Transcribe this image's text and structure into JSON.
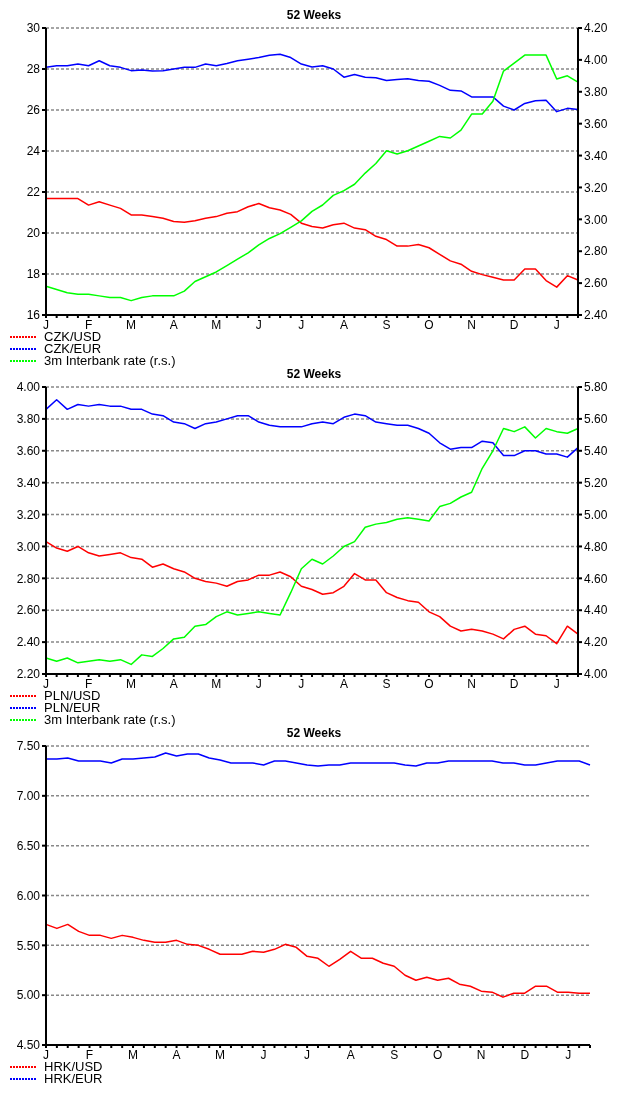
{
  "chart_data": [
    {
      "type": "line",
      "title": "52 Weeks",
      "categories": [
        "J",
        null,
        null,
        null,
        "F",
        null,
        null,
        null,
        "M",
        null,
        null,
        null,
        "A",
        null,
        null,
        null,
        "M",
        null,
        null,
        null,
        "J",
        null,
        null,
        null,
        "J",
        null,
        null,
        null,
        "A",
        null,
        null,
        null,
        "S",
        null,
        null,
        null,
        "O",
        null,
        null,
        null,
        "N",
        null,
        null,
        null,
        "D",
        null,
        null,
        null,
        "J",
        null,
        null
      ],
      "series": [
        {
          "name": "CZK/USD",
          "color": "#ff0000",
          "values": [
            21.68,
            21.68,
            21.68,
            21.68,
            21.36,
            21.52,
            21.36,
            21.2,
            20.88,
            20.88,
            20.8,
            20.72,
            20.56,
            20.53,
            20.6,
            20.72,
            20.8,
            20.96,
            21.04,
            21.28,
            21.44,
            21.23,
            21.12,
            20.91,
            20.48,
            20.32,
            20.24,
            20.4,
            20.48,
            20.24,
            20.16,
            19.84,
            19.68,
            19.36,
            19.36,
            19.44,
            19.28,
            18.96,
            18.64,
            18.48,
            18.13,
            17.97,
            17.84,
            17.71,
            17.71,
            18.24,
            18.24,
            17.68,
            17.36,
            17.92,
            17.71
          ]
        },
        {
          "name": "CZK/EUR",
          "color": "#0000ff",
          "values": [
            28.08,
            28.16,
            28.16,
            28.24,
            28.16,
            28.4,
            28.16,
            28.08,
            27.92,
            27.95,
            27.9,
            27.92,
            28.0,
            28.08,
            28.08,
            28.24,
            28.16,
            28.27,
            28.4,
            28.48,
            28.56,
            28.67,
            28.72,
            28.56,
            28.24,
            28.1,
            28.16,
            28.0,
            27.6,
            27.73,
            27.6,
            27.57,
            27.44,
            27.49,
            27.52,
            27.44,
            27.4,
            27.2,
            26.96,
            26.93,
            26.64,
            26.64,
            26.64,
            26.19,
            26.0,
            26.32,
            26.45,
            26.48,
            25.92,
            26.08,
            26.03
          ]
        },
        {
          "name": "3m Interbank rate (r.s.)",
          "color": "#00ff00",
          "axis": "y2",
          "values": [
            2.58,
            2.56,
            2.54,
            2.53,
            2.53,
            2.52,
            2.51,
            2.51,
            2.49,
            2.51,
            2.52,
            2.52,
            2.52,
            2.55,
            2.61,
            2.64,
            2.67,
            2.71,
            2.75,
            2.79,
            2.84,
            2.88,
            2.91,
            2.95,
            2.99,
            3.05,
            3.09,
            3.15,
            3.18,
            3.22,
            3.29,
            3.35,
            3.43,
            3.41,
            3.43,
            3.46,
            3.49,
            3.52,
            3.51,
            3.56,
            3.66,
            3.66,
            3.74,
            3.93,
            3.98,
            4.03,
            4.03,
            4.03,
            3.88,
            3.9,
            3.86
          ]
        }
      ],
      "ylim": [
        16,
        30
      ],
      "yticks": [
        16,
        18,
        20,
        22,
        24,
        26,
        28,
        30
      ],
      "y2lim": [
        2.4,
        4.2
      ],
      "y2ticks": [
        {
          "value": 2.4,
          "label": "2.40"
        },
        {
          "value": 2.6,
          "label": "2.60"
        },
        {
          "value": 2.8,
          "label": "2.80"
        },
        {
          "value": 3.0,
          "label": "3.00"
        },
        {
          "value": 3.2,
          "label": "3.20"
        },
        {
          "value": 3.4,
          "label": "3.40"
        },
        {
          "value": 3.6,
          "label": "3.60"
        },
        {
          "value": 3.8,
          "label": "3.80"
        },
        {
          "value": 4.0,
          "label": "4.00"
        },
        {
          "value": 4.2,
          "label": "4.20"
        }
      ],
      "grid": "y",
      "legend": "bottom left",
      "line_style": "solid"
    },
    {
      "type": "line",
      "title": "52 Weeks",
      "categories": [
        "J",
        null,
        null,
        null,
        "F",
        null,
        null,
        null,
        "M",
        null,
        null,
        null,
        "A",
        null,
        null,
        null,
        "M",
        null,
        null,
        null,
        "J",
        null,
        null,
        null,
        "J",
        null,
        null,
        null,
        "A",
        null,
        null,
        null,
        "S",
        null,
        null,
        null,
        "O",
        null,
        null,
        null,
        "N",
        null,
        null,
        null,
        "D",
        null,
        null,
        null,
        "J",
        null,
        null
      ],
      "series": [
        {
          "name": "PLN/USD",
          "color": "#ff0000",
          "values": [
            3.03,
            2.99,
            2.97,
            3.0,
            2.96,
            2.94,
            2.95,
            2.96,
            2.93,
            2.92,
            2.87,
            2.89,
            2.86,
            2.84,
            2.8,
            2.78,
            2.77,
            2.75,
            2.78,
            2.79,
            2.82,
            2.82,
            2.84,
            2.81,
            2.75,
            2.73,
            2.7,
            2.71,
            2.75,
            2.83,
            2.79,
            2.79,
            2.71,
            2.68,
            2.66,
            2.65,
            2.59,
            2.56,
            2.5,
            2.47,
            2.48,
            2.47,
            2.45,
            2.42,
            2.48,
            2.5,
            2.45,
            2.44,
            2.39,
            2.5,
            2.45
          ]
        },
        {
          "name": "PLN/EUR",
          "color": "#0000ff",
          "values": [
            3.86,
            3.92,
            3.86,
            3.89,
            3.88,
            3.89,
            3.88,
            3.88,
            3.86,
            3.86,
            3.83,
            3.82,
            3.78,
            3.77,
            3.74,
            3.77,
            3.78,
            3.8,
            3.82,
            3.82,
            3.78,
            3.76,
            3.75,
            3.75,
            3.75,
            3.77,
            3.78,
            3.77,
            3.81,
            3.83,
            3.82,
            3.78,
            3.77,
            3.76,
            3.76,
            3.74,
            3.71,
            3.65,
            3.61,
            3.62,
            3.62,
            3.66,
            3.65,
            3.57,
            3.57,
            3.6,
            3.6,
            3.58,
            3.58,
            3.56,
            3.62
          ]
        },
        {
          "name": "3m Interbank rate (r.s.)",
          "color": "#00ff00",
          "axis": "y2",
          "values": [
            4.1,
            4.08,
            4.1,
            4.07,
            4.08,
            4.09,
            4.08,
            4.09,
            4.06,
            4.12,
            4.11,
            4.16,
            4.22,
            4.23,
            4.3,
            4.31,
            4.36,
            4.39,
            4.37,
            4.38,
            4.39,
            4.38,
            4.37,
            4.51,
            4.66,
            4.72,
            4.69,
            4.74,
            4.8,
            4.83,
            4.92,
            4.94,
            4.95,
            4.97,
            4.98,
            4.97,
            4.96,
            5.05,
            5.07,
            5.11,
            5.14,
            5.29,
            5.4,
            5.54,
            5.52,
            5.55,
            5.48,
            5.54,
            5.52,
            5.51,
            5.54
          ]
        }
      ],
      "ylim": [
        2.2,
        4.0
      ],
      "yticks": [
        {
          "value": 2.2,
          "label": "2.20"
        },
        {
          "value": 2.4,
          "label": "2.40"
        },
        {
          "value": 2.6,
          "label": "2.60"
        },
        {
          "value": 2.8,
          "label": "2.80"
        },
        {
          "value": 3.0,
          "label": "3.00"
        },
        {
          "value": 3.2,
          "label": "3.20"
        },
        {
          "value": 3.4,
          "label": "3.40"
        },
        {
          "value": 3.6,
          "label": "3.60"
        },
        {
          "value": 3.8,
          "label": "3.80"
        },
        {
          "value": 4.0,
          "label": "4.00"
        }
      ],
      "y2lim": [
        4.0,
        5.8
      ],
      "y2ticks": [
        {
          "value": 4.0,
          "label": "4.00"
        },
        {
          "value": 4.2,
          "label": "4.20"
        },
        {
          "value": 4.4,
          "label": "4.40"
        },
        {
          "value": 4.6,
          "label": "4.60"
        },
        {
          "value": 4.8,
          "label": "4.80"
        },
        {
          "value": 5.0,
          "label": "5.00"
        },
        {
          "value": 5.2,
          "label": "5.20"
        },
        {
          "value": 5.4,
          "label": "5.40"
        },
        {
          "value": 5.6,
          "label": "5.60"
        },
        {
          "value": 5.8,
          "label": "5.80"
        }
      ],
      "grid": "y",
      "legend": "bottom left",
      "line_style": "solid"
    },
    {
      "type": "line",
      "title": "52 Weeks",
      "categories": [
        "J",
        null,
        null,
        null,
        "F",
        null,
        null,
        null,
        "M",
        null,
        null,
        null,
        "A",
        null,
        null,
        null,
        "M",
        null,
        null,
        null,
        "J",
        null,
        null,
        null,
        "J",
        null,
        null,
        null,
        "A",
        null,
        null,
        null,
        "S",
        null,
        null,
        null,
        "O",
        null,
        null,
        null,
        "N",
        null,
        null,
        null,
        "D",
        null,
        null,
        null,
        "J",
        null,
        null
      ],
      "series": [
        {
          "name": "HRK/USD",
          "color": "#ff0000",
          "values": [
            5.71,
            5.67,
            5.71,
            5.64,
            5.6,
            5.6,
            5.57,
            5.6,
            5.58,
            5.55,
            5.53,
            5.53,
            5.55,
            5.51,
            5.5,
            5.46,
            5.41,
            5.41,
            5.41,
            5.44,
            5.43,
            5.46,
            5.51,
            5.48,
            5.39,
            5.37,
            5.29,
            5.36,
            5.44,
            5.37,
            5.37,
            5.32,
            5.29,
            5.2,
            5.15,
            5.18,
            5.15,
            5.17,
            5.11,
            5.09,
            5.04,
            5.03,
            4.98,
            5.02,
            5.02,
            5.09,
            5.09,
            5.03,
            5.03,
            5.02,
            5.02
          ]
        },
        {
          "name": "HRK/EUR",
          "color": "#0000ff",
          "values": [
            7.37,
            7.37,
            7.38,
            7.35,
            7.35,
            7.35,
            7.33,
            7.37,
            7.37,
            7.38,
            7.39,
            7.43,
            7.4,
            7.42,
            7.42,
            7.38,
            7.36,
            7.33,
            7.33,
            7.33,
            7.31,
            7.35,
            7.35,
            7.33,
            7.31,
            7.3,
            7.31,
            7.31,
            7.33,
            7.33,
            7.33,
            7.33,
            7.33,
            7.31,
            7.3,
            7.33,
            7.33,
            7.35,
            7.35,
            7.35,
            7.35,
            7.35,
            7.33,
            7.33,
            7.31,
            7.31,
            7.33,
            7.35,
            7.35,
            7.35,
            7.31
          ]
        }
      ],
      "ylim": [
        4.5,
        7.5
      ],
      "yticks": [
        {
          "value": 4.5,
          "label": "4.50"
        },
        {
          "value": 5.0,
          "label": "5.00"
        },
        {
          "value": 5.5,
          "label": "5.50"
        },
        {
          "value": 6.0,
          "label": "6.00"
        },
        {
          "value": 6.5,
          "label": "6.50"
        },
        {
          "value": 7.0,
          "label": "7.00"
        },
        {
          "value": 7.5,
          "label": "7.50"
        }
      ],
      "grid": "y",
      "legend": "bottom left",
      "line_style": "solid"
    }
  ]
}
